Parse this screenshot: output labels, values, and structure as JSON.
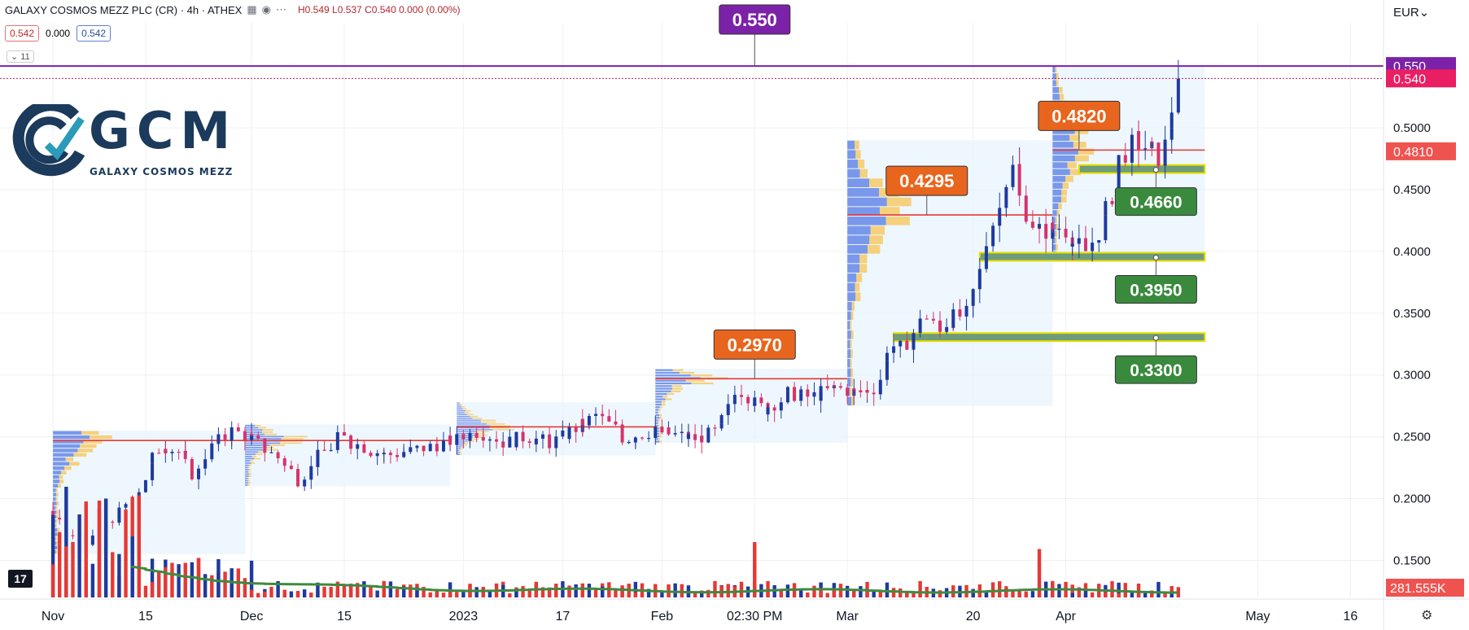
{
  "header": {
    "title": "GALAXY COSMOS MEZZ PLC (CR) · 4h · ATHEX",
    "ohlc": "H0.549 L0.537 C0.540 0.000 (0.00%)",
    "bid": "0.542",
    "spread": "0.000",
    "ask": "0.542",
    "indicator_count": "11",
    "currency": "EUR"
  },
  "logo": {
    "name": "GCM",
    "subtitle": "GALAXY COSMOS MEZZ"
  },
  "colors": {
    "up": "#1e3a9e",
    "down": "#e53935",
    "profile_blue": "#5b7fe6",
    "profile_yellow": "#f6c75c",
    "callout_orange": "#e8651e",
    "callout_green": "#3a8a3e",
    "callout_purple": "#7b22a8",
    "poc_line": "#e53935",
    "volume_ma": "#3f8a3f"
  },
  "chart_data": {
    "type": "candlestick",
    "title": "",
    "xlabel": "",
    "ylabel": "",
    "ylim": [
      0.12,
      0.585
    ],
    "y_ticks": [
      "0.1500",
      "0.2000",
      "0.2500",
      "0.3000",
      "0.3500",
      "0.4000",
      "0.4500",
      "0.5000"
    ],
    "x_ticks": [
      {
        "label": "Nov",
        "date": "2022-11-01"
      },
      {
        "label": "15",
        "date": "2022-11-15"
      },
      {
        "label": "Dec",
        "date": "2022-12-01"
      },
      {
        "label": "15",
        "date": "2022-12-15"
      },
      {
        "label": "2023",
        "date": "2023-01-02"
      },
      {
        "label": "17",
        "date": "2023-01-17"
      },
      {
        "label": "Feb",
        "date": "2023-02-01"
      },
      {
        "label": "02:30 PM",
        "date": "2023-02-15"
      },
      {
        "label": "Mar",
        "date": "2023-03-01"
      },
      {
        "label": "20",
        "date": "2023-03-20"
      },
      {
        "label": "Apr",
        "date": "2023-04-03"
      },
      {
        "label": "May",
        "date": "2023-05-02"
      },
      {
        "label": "16",
        "date": "2023-05-16"
      }
    ],
    "price_path": [
      [
        "2022-11-01",
        0.19
      ],
      [
        "2022-11-04",
        0.17
      ],
      [
        "2022-11-08",
        0.165
      ],
      [
        "2022-11-10",
        0.18
      ],
      [
        "2022-11-14",
        0.2
      ],
      [
        "2022-11-16",
        0.225
      ],
      [
        "2022-11-18",
        0.245
      ],
      [
        "2022-11-21",
        0.235
      ],
      [
        "2022-11-23",
        0.215
      ],
      [
        "2022-11-25",
        0.24
      ],
      [
        "2022-11-29",
        0.255
      ],
      [
        "2022-12-01",
        0.25
      ],
      [
        "2022-12-05",
        0.235
      ],
      [
        "2022-12-07",
        0.225
      ],
      [
        "2022-12-09",
        0.215
      ],
      [
        "2022-12-12",
        0.235
      ],
      [
        "2022-12-15",
        0.25
      ],
      [
        "2022-12-19",
        0.24
      ],
      [
        "2022-12-22",
        0.235
      ],
      [
        "2022-12-27",
        0.24
      ],
      [
        "2023-01-02",
        0.248
      ],
      [
        "2023-01-05",
        0.255
      ],
      [
        "2023-01-09",
        0.245
      ],
      [
        "2023-01-12",
        0.25
      ],
      [
        "2023-01-16",
        0.245
      ],
      [
        "2023-01-19",
        0.255
      ],
      [
        "2023-01-23",
        0.268
      ],
      [
        "2023-01-25",
        0.258
      ],
      [
        "2023-01-27",
        0.248
      ],
      [
        "2023-01-31",
        0.255
      ],
      [
        "2023-02-03",
        0.252
      ],
      [
        "2023-02-07",
        0.248
      ],
      [
        "2023-02-10",
        0.255
      ],
      [
        "2023-02-13",
        0.29
      ],
      [
        "2023-02-15",
        0.28
      ],
      [
        "2023-02-17",
        0.272
      ],
      [
        "2023-02-21",
        0.285
      ],
      [
        "2023-02-24",
        0.282
      ],
      [
        "2023-02-28",
        0.29
      ],
      [
        "2023-03-03",
        0.285
      ],
      [
        "2023-03-06",
        0.29
      ],
      [
        "2023-03-08",
        0.325
      ],
      [
        "2023-03-10",
        0.32
      ],
      [
        "2023-03-13",
        0.35
      ],
      [
        "2023-03-15",
        0.335
      ],
      [
        "2023-03-17",
        0.345
      ],
      [
        "2023-03-20",
        0.35
      ],
      [
        "2023-03-22",
        0.395
      ],
      [
        "2023-03-24",
        0.43
      ],
      [
        "2023-03-27",
        0.475
      ],
      [
        "2023-03-28",
        0.44
      ],
      [
        "2023-03-30",
        0.415
      ],
      [
        "2023-04-03",
        0.42
      ],
      [
        "2023-04-05",
        0.405
      ],
      [
        "2023-04-07",
        0.4
      ],
      [
        "2023-04-10",
        0.435
      ],
      [
        "2023-04-12",
        0.475
      ],
      [
        "2023-04-14",
        0.49
      ],
      [
        "2023-04-17",
        0.48
      ],
      [
        "2023-04-18",
        0.475
      ],
      [
        "2023-04-19",
        0.5
      ],
      [
        "2023-04-21",
        0.54
      ]
    ],
    "horizontal_lines": [
      {
        "price": 0.55,
        "label": "0.550",
        "color": "purple"
      },
      {
        "price": 0.54,
        "label": "0.540",
        "color": "magenta"
      }
    ],
    "callouts": [
      {
        "label": "0.2970",
        "price": 0.297,
        "date": "2023-02-15",
        "color": "orange"
      },
      {
        "label": "0.4295",
        "price": 0.4295,
        "date": "2023-03-13",
        "color": "orange"
      },
      {
        "label": "0.4820",
        "price": 0.482,
        "date": "2023-04-05",
        "color": "orange"
      },
      {
        "label": "0.550",
        "price": 0.55,
        "date": "2023-02-15",
        "color": "purple"
      }
    ],
    "zones": [
      {
        "label": "0.4660",
        "price": 0.466,
        "from": "2023-04-05",
        "to": "2023-04-24"
      },
      {
        "label": "0.3950",
        "price": 0.395,
        "from": "2023-03-21",
        "to": "2023-04-24"
      },
      {
        "label": "0.3300",
        "price": 0.33,
        "from": "2023-03-08",
        "to": "2023-04-24"
      }
    ],
    "profiles": [
      {
        "from": "2022-11-01",
        "to": "2022-11-30",
        "low": 0.155,
        "high": 0.255,
        "poc": 0.247
      },
      {
        "from": "2022-11-30",
        "to": "2022-12-31",
        "low": 0.21,
        "high": 0.26,
        "poc": 0.247
      },
      {
        "from": "2023-01-01",
        "to": "2023-01-31",
        "low": 0.235,
        "high": 0.278,
        "poc": 0.258
      },
      {
        "from": "2023-01-31",
        "to": "2023-03-01",
        "low": 0.245,
        "high": 0.305,
        "poc": 0.297
      },
      {
        "from": "2023-03-01",
        "to": "2023-04-01",
        "low": 0.275,
        "high": 0.49,
        "poc": 0.4295
      },
      {
        "from": "2023-04-01",
        "to": "2023-04-24",
        "low": 0.395,
        "high": 0.55,
        "poc": 0.482
      }
    ],
    "price_labels": [
      {
        "label": "0.550",
        "price": 0.55,
        "color": "purple"
      },
      {
        "label": "0.540",
        "price": 0.54,
        "color": "magenta"
      },
      {
        "label": "0.4810",
        "price": 0.481,
        "color": "red"
      }
    ],
    "volume": {
      "last_label": "281.555K",
      "spikes": [
        {
          "date": "2022-11-03",
          "value": 8
        },
        {
          "date": "2022-11-05",
          "value": 6
        },
        {
          "date": "2022-11-08",
          "value": 7
        },
        {
          "date": "2023-02-15",
          "value": 4
        },
        {
          "date": "2023-03-30",
          "value": 3.5
        }
      ]
    }
  }
}
